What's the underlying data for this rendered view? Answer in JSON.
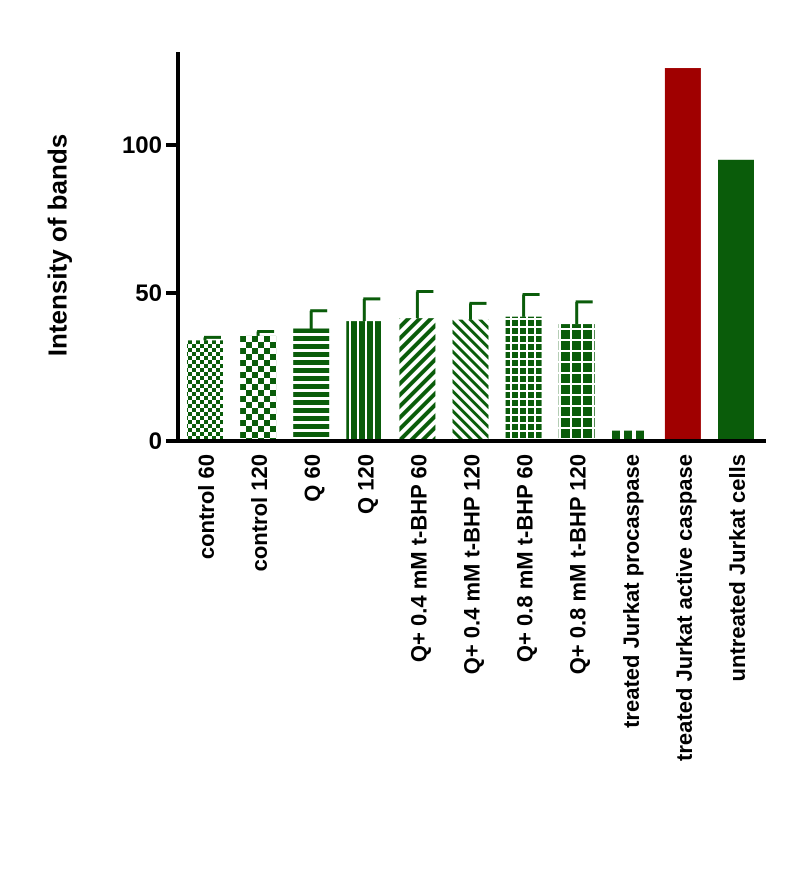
{
  "chart_data": {
    "type": "bar",
    "title": "",
    "xlabel": "",
    "ylabel": "Intensity of bands",
    "ylim": [
      0,
      130
    ],
    "yticks": [
      0,
      50,
      100
    ],
    "grid": false,
    "legend": "none",
    "colors": {
      "green": "#0a5c0a",
      "red": "#a00000"
    },
    "categories": [
      "control  60",
      "control  120",
      "Q  60",
      "Q 120",
      "Q+ 0.4 mM t-BHP 60",
      "Q+ 0.4 mM t-BHP 120",
      "Q+ 0.8 mM t-BHP 60",
      "Q+ 0.8 mM t-BHP 120",
      "treated Jurkat procaspase",
      "treated Jurkat active caspase",
      "untreated Jurkat cells"
    ],
    "values": [
      34,
      35.5,
      38,
      40.5,
      41.5,
      41,
      42,
      39.5,
      3.5,
      126,
      95
    ],
    "errors": [
      1,
      1.5,
      6,
      7.5,
      9,
      5.5,
      7.5,
      7.5,
      0,
      0,
      0
    ],
    "bar_colors": [
      "green",
      "green",
      "green",
      "green",
      "green",
      "green",
      "green",
      "green",
      "green",
      "red",
      "green"
    ],
    "patterns": [
      "checker-small",
      "checker-large",
      "hstripes",
      "vstripes",
      "diag-up",
      "diag-down",
      "grid",
      "grid-large",
      "dashes",
      "solid",
      "solid"
    ]
  }
}
